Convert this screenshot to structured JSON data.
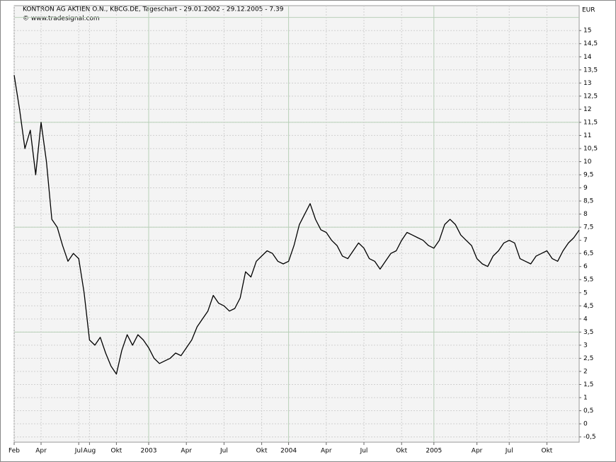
{
  "chart_data": {
    "type": "line",
    "title": "KONTRON AG AKTIEN O.N., KBCG.DE, Tageschart - 29.01.2002 - 29.12.2005 - 7.39",
    "subtitle": "© www.tradesignal.com",
    "y_axis_label": "EUR",
    "color": "#000000",
    "grid": true,
    "major_y": [
      3.5,
      7.5,
      11.5,
      15.5
    ],
    "categories": [
      "Feb",
      null,
      null,
      null,
      null,
      "Apr",
      null,
      null,
      null,
      null,
      null,
      null,
      "Jul",
      null,
      "Aug",
      null,
      null,
      null,
      null,
      "Okt",
      null,
      null,
      null,
      null,
      null,
      "2003",
      null,
      null,
      null,
      null,
      null,
      null,
      "Apr",
      null,
      null,
      null,
      null,
      null,
      null,
      "Jul",
      null,
      null,
      null,
      null,
      null,
      null,
      "Okt",
      null,
      null,
      null,
      null,
      "2004",
      null,
      null,
      null,
      null,
      null,
      null,
      "Apr",
      null,
      null,
      null,
      null,
      null,
      null,
      "Jul",
      null,
      null,
      null,
      null,
      null,
      null,
      "Okt",
      null,
      null,
      null,
      null,
      null,
      "2005",
      null,
      null,
      null,
      null,
      null,
      null,
      null,
      "Apr",
      null,
      null,
      null,
      null,
      null,
      "Jul",
      null,
      null,
      null,
      null,
      null,
      null,
      "Okt",
      null,
      null,
      null,
      null,
      null,
      null
    ],
    "values": [
      13.3,
      12.0,
      10.5,
      11.2,
      9.5,
      11.5,
      10.0,
      7.8,
      7.5,
      6.8,
      6.2,
      6.5,
      6.3,
      5.0,
      3.2,
      3.0,
      3.3,
      2.7,
      2.2,
      1.9,
      2.8,
      3.4,
      3.0,
      3.4,
      3.2,
      2.9,
      2.5,
      2.3,
      2.4,
      2.5,
      2.7,
      2.6,
      2.9,
      3.2,
      3.7,
      4.0,
      4.3,
      4.9,
      4.6,
      4.5,
      4.3,
      4.4,
      4.8,
      5.8,
      5.6,
      6.2,
      6.4,
      6.6,
      6.5,
      6.2,
      6.1,
      6.2,
      6.8,
      7.6,
      8.0,
      8.4,
      7.8,
      7.4,
      7.3,
      7.0,
      6.8,
      6.4,
      6.3,
      6.6,
      6.9,
      6.7,
      6.3,
      6.2,
      5.9,
      6.2,
      6.5,
      6.6,
      7.0,
      7.3,
      7.2,
      7.1,
      7.0,
      6.8,
      6.7,
      7.0,
      7.6,
      7.8,
      7.6,
      7.2,
      7.0,
      6.8,
      6.3,
      6.1,
      6.0,
      6.4,
      6.6,
      6.9,
      7.0,
      6.9,
      6.3,
      6.2,
      6.1,
      6.4,
      6.5,
      6.6,
      6.3,
      6.2,
      6.6,
      6.9,
      7.1,
      7.39
    ],
    "ylim": [
      -0.7,
      15.95
    ],
    "yticks": [
      {
        "value": -0.5,
        "label": "-0,5"
      },
      0,
      {
        "value": 0.5,
        "label": "0,5"
      },
      1,
      {
        "value": 1.5,
        "label": "1,5"
      },
      2,
      {
        "value": 2.5,
        "label": "2,5"
      },
      3,
      {
        "value": 3.5,
        "label": "3,5"
      },
      4,
      {
        "value": 4.5,
        "label": "4,5"
      },
      5,
      {
        "value": 5.5,
        "label": "5,5"
      },
      6,
      {
        "value": 6.5,
        "label": "6,5"
      },
      7,
      {
        "value": 7.5,
        "label": "7,5"
      },
      8,
      {
        "value": 8.5,
        "label": "8,5"
      },
      9,
      {
        "value": 9.5,
        "label": "9,5"
      },
      10,
      {
        "value": 10.5,
        "label": "10,5"
      },
      11,
      {
        "value": 11.5,
        "label": "11,5"
      },
      12,
      {
        "value": 12.5,
        "label": "12,5"
      },
      13,
      {
        "value": 13.5,
        "label": "13,5"
      },
      14,
      {
        "value": 14.5,
        "label": "14,5"
      },
      15
    ]
  }
}
